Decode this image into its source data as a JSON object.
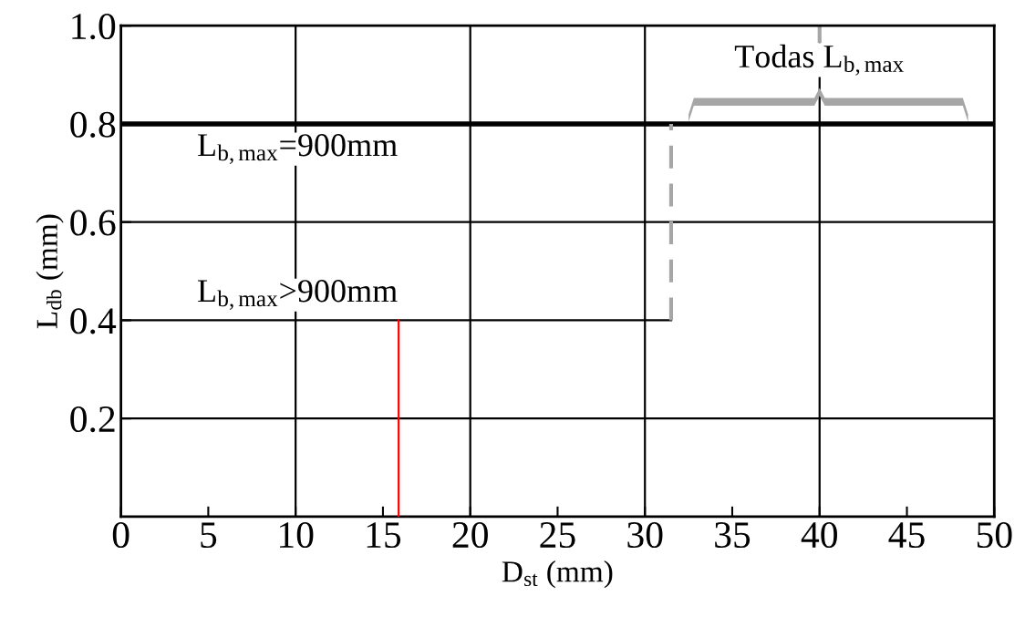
{
  "chart_data": {
    "type": "line",
    "xlabel": "D$_{st}$ (mm)",
    "ylabel": "L$_{db}$ (mm)",
    "xlim": [
      0,
      50
    ],
    "ylim": [
      0,
      1.0
    ],
    "xticks": [
      0,
      5,
      10,
      15,
      20,
      25,
      30,
      35,
      40,
      45,
      50
    ],
    "yticks": [
      0.2,
      0.4,
      0.6,
      0.8,
      {
        "value": 1.0,
        "label": "1.0"
      }
    ],
    "grid": false,
    "legend": false,
    "series": [
      {
        "name": "L$_{b,max}$=900mm",
        "color": "#000000",
        "x": [
          0,
          50
        ],
        "values": [
          0.8,
          0.8
        ],
        "line_style": "solid"
      },
      {
        "name": "L$_{b,max}$>900mm",
        "color": "#000000",
        "x": [
          0,
          31.5
        ],
        "values": [
          0.4,
          0.4
        ],
        "line_style": "solid"
      },
      {
        "color": "#a6a6a6",
        "x": [
          31.5,
          31.5
        ],
        "values": [
          0.4,
          0.8
        ],
        "line_style": "dashed"
      },
      {
        "color": "#ff0000",
        "x": [
          15.9,
          15.9
        ],
        "values": [
          0,
          0.4
        ],
        "line_style": "solid"
      }
    ],
    "ref_lines": [
      {
        "axis": "x",
        "value": 10,
        "color": "#000000"
      },
      {
        "axis": "x",
        "value": 20,
        "color": "#000000"
      },
      {
        "axis": "x",
        "value": 30,
        "color": "#000000"
      },
      {
        "axis": "x",
        "value": 40,
        "color": "#000000"
      },
      {
        "axis": "y",
        "value": 0.2,
        "color": "#000000"
      },
      {
        "axis": "y",
        "value": 0.6,
        "color": "#000000"
      }
    ],
    "annotations": [
      {
        "text": "Todas L$_{b,max}$",
        "x": 40,
        "y": 0.8
      }
    ]
  }
}
